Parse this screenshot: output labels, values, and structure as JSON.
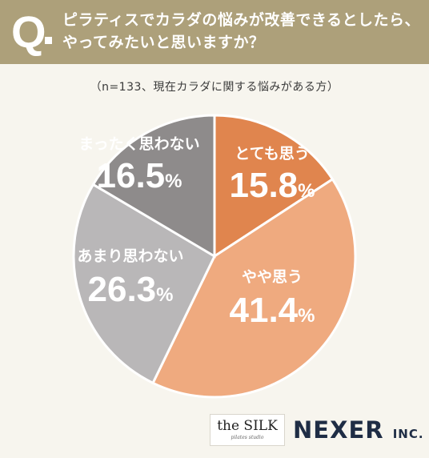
{
  "header": {
    "q_label": "Q",
    "question_line1": "ピラティスでカラダの悩みが改善できるとしたら、",
    "question_line2": "やってみたいと思いますか？"
  },
  "subtitle": "（n=133、現在カラダに関する悩みがある方）",
  "chart_data": {
    "type": "pie",
    "slices": [
      {
        "label": "とても思う",
        "value": 15.8,
        "display": "15.8",
        "color": "#e0854e"
      },
      {
        "label": "やや思う",
        "value": 41.4,
        "display": "41.4",
        "color": "#efaa7f"
      },
      {
        "label": "あまり思わない",
        "value": 26.3,
        "display": "26.3",
        "color": "#b9b7b8"
      },
      {
        "label": "まったく思わない",
        "value": 16.5,
        "display": "16.5",
        "color": "#8e8b8b"
      }
    ],
    "unit": "%",
    "start_angle": "12 o'clock",
    "direction": "clockwise"
  },
  "logos": {
    "silk_name": "the SILK",
    "silk_tagline": "pilates studio",
    "nexer": "NEXER",
    "nexer_suffix": "INC."
  }
}
